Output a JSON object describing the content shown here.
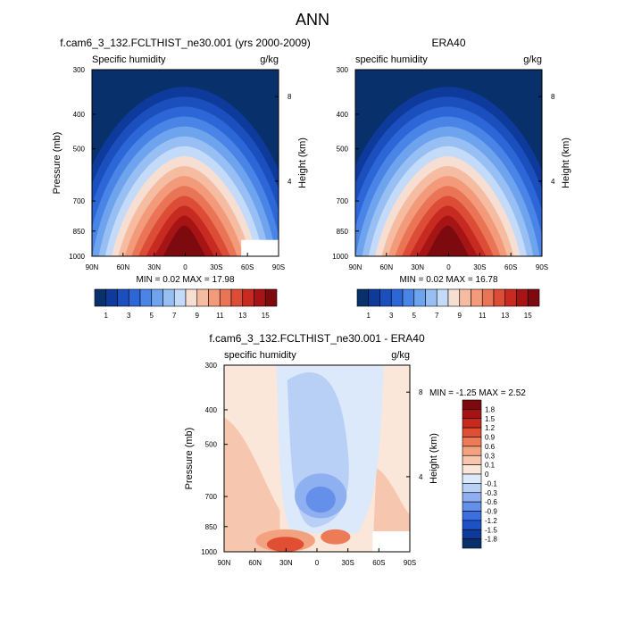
{
  "figure": {
    "title": "ANN"
  },
  "colors": {
    "seq_scale": [
      "#08306b",
      "#0d3a9b",
      "#1a4fbd",
      "#2d66d6",
      "#4a84e6",
      "#6ea3ee",
      "#97bff4",
      "#c3dbf8",
      "#f6dfd2",
      "#f6bca2",
      "#f29a7a",
      "#ea7556",
      "#dc4c36",
      "#c72a20",
      "#a61416",
      "#7d0a0f"
    ],
    "diff_scale": [
      "#08306b",
      "#0d3a9b",
      "#1c52c6",
      "#3b6fe0",
      "#6490ea",
      "#8fb0f0",
      "#b8cff6",
      "#dce9fb",
      "#fbe6da",
      "#f7c6ae",
      "#f3a27f",
      "#ec7c57",
      "#e04f33",
      "#c82a1d",
      "#a51414",
      "#7a0a0e"
    ]
  },
  "chart_data": [
    {
      "type": "heatmap",
      "title": "f.cam6_3_132.FCLTHIST_ne30.001 (yrs 2000-2009)",
      "subtitle_left": "Specific humidity",
      "subtitle_right": "g/kg",
      "ylabel": "Pressure (mb)",
      "ylabel_right": "Height (km)",
      "xticks": [
        "90N",
        "60N",
        "30N",
        "0",
        "30S",
        "60S",
        "90S"
      ],
      "yticks": [
        "300",
        "400",
        "500",
        "700",
        "850",
        "1000"
      ],
      "ylim": [
        1000,
        300
      ],
      "yticks_right": [
        "8",
        "4"
      ],
      "stats": "MIN =  0.02  MAX = 17.98",
      "colorbar_labels": [
        "1",
        "3",
        "5",
        "7",
        "9",
        "11",
        "13",
        "15"
      ],
      "peak": 17.98
    },
    {
      "type": "heatmap",
      "title": "ERA40",
      "subtitle_left": "specific humidity",
      "subtitle_right": "g/kg",
      "ylabel_right": "Height (km)",
      "xticks": [
        "90N",
        "60N",
        "30N",
        "0",
        "30S",
        "60S",
        "90S"
      ],
      "yticks": [
        "300",
        "400",
        "500",
        "700",
        "850",
        "1000"
      ],
      "ylim": [
        1000,
        300
      ],
      "yticks_right": [
        "8",
        "4"
      ],
      "stats": "MIN =  0.02  MAX = 16.78",
      "colorbar_labels": [
        "1",
        "3",
        "5",
        "7",
        "9",
        "11",
        "13",
        "15"
      ],
      "peak": 16.78
    },
    {
      "type": "heatmap",
      "title": "f.cam6_3_132.FCLTHIST_ne30.001 - ERA40",
      "subtitle_left": "specific humidity",
      "subtitle_right": "g/kg",
      "ylabel": "Pressure (mb)",
      "ylabel_right": "Height (km)",
      "xticks": [
        "90N",
        "60N",
        "30N",
        "0",
        "30S",
        "60S",
        "90S"
      ],
      "yticks": [
        "300",
        "400",
        "500",
        "700",
        "850",
        "1000"
      ],
      "ylim": [
        1000,
        300
      ],
      "yticks_right": [
        "8",
        "4"
      ],
      "stats": "MIN = -1.25  MAX =  2.52",
      "colorbar_labels": [
        "1.8",
        "1.5",
        "1.2",
        "0.9",
        "0.6",
        "0.3",
        "0.1",
        "0",
        "-0.1",
        "-0.3",
        "-0.6",
        "-0.9",
        "-1.2",
        "-1.5",
        "-1.8"
      ]
    }
  ]
}
